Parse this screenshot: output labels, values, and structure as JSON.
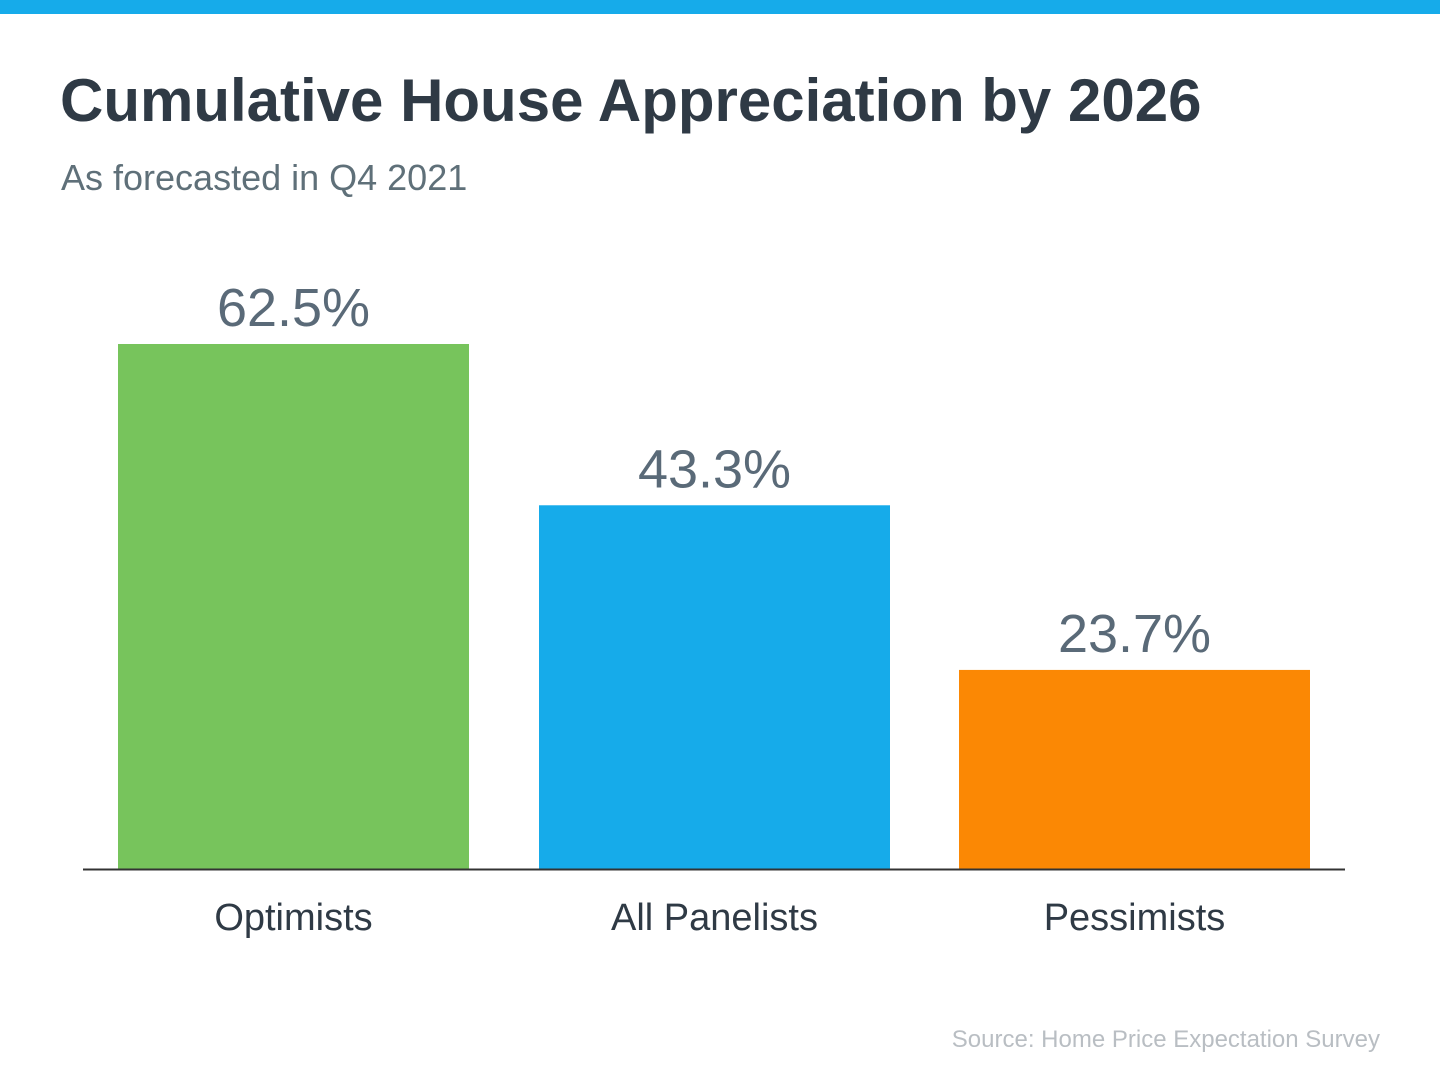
{
  "colors": {
    "top_bar": "#16abea",
    "axis": "#333333"
  },
  "footer": {
    "source": "Source: Home Price Expectation Survey"
  },
  "chart_data": {
    "type": "bar",
    "title": "Cumulative House Appreciation by 2026",
    "subtitle": "As forecasted in Q4 2021",
    "xlabel": "",
    "ylabel": "",
    "ylim": [
      0,
      62.5
    ],
    "grid": false,
    "legend": "none",
    "categories": [
      "Optimists",
      "All Panelists",
      "Pessimists"
    ],
    "values": [
      62.5,
      43.3,
      23.7
    ],
    "value_labels": [
      "62.5%",
      "43.3%",
      "23.7%"
    ],
    "colors": [
      "#77c45c",
      "#16abea",
      "#fb8804"
    ]
  }
}
